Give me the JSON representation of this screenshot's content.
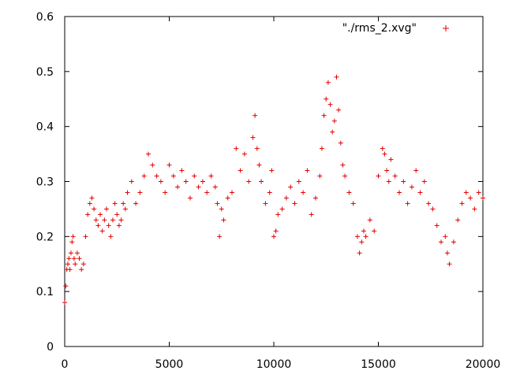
{
  "chart_data": {
    "type": "scatter",
    "title": "",
    "xlabel": "",
    "ylabel": "",
    "xlim": [
      0,
      20000
    ],
    "ylim": [
      0,
      0.6
    ],
    "x_ticks": [
      "0",
      "5000",
      "10000",
      "15000",
      "20000"
    ],
    "y_ticks": [
      "0",
      "0.1",
      "0.2",
      "0.3",
      "0.4",
      "0.5",
      "0.6"
    ],
    "grid": false,
    "legend_position": "top-right",
    "marker": "plus",
    "color": "#e00000",
    "series": [
      {
        "name": "\"./rms_2.xvg\"",
        "x": [
          0,
          50,
          100,
          150,
          200,
          250,
          300,
          350,
          400,
          450,
          500,
          600,
          700,
          800,
          900,
          1000,
          1100,
          1200,
          1300,
          1400,
          1500,
          1600,
          1700,
          1800,
          1900,
          2000,
          2100,
          2200,
          2300,
          2400,
          2500,
          2600,
          2700,
          2800,
          2900,
          3000,
          3200,
          3400,
          3600,
          3800,
          4000,
          4200,
          4400,
          4600,
          4800,
          5000,
          5200,
          5400,
          5600,
          5800,
          6000,
          6200,
          6400,
          6600,
          6800,
          7000,
          7200,
          7300,
          7400,
          7500,
          7600,
          7800,
          8000,
          8200,
          8400,
          8600,
          8800,
          9000,
          9100,
          9200,
          9300,
          9400,
          9600,
          9800,
          9900,
          10000,
          10100,
          10200,
          10400,
          10600,
          10800,
          11000,
          11200,
          11400,
          11600,
          11800,
          12000,
          12200,
          12300,
          12400,
          12500,
          12600,
          12700,
          12800,
          12900,
          13000,
          13100,
          13200,
          13300,
          13400,
          13600,
          13800,
          14000,
          14100,
          14200,
          14300,
          14400,
          14600,
          14800,
          15000,
          15200,
          15300,
          15400,
          15500,
          15600,
          15800,
          16000,
          16200,
          16400,
          16600,
          16800,
          17000,
          17200,
          17400,
          17600,
          17800,
          18000,
          18200,
          18300,
          18400,
          18600,
          18800,
          19000,
          19200,
          19400,
          19600,
          19800,
          20000
        ],
        "y": [
          0.08,
          0.11,
          0.14,
          0.15,
          0.16,
          0.14,
          0.17,
          0.19,
          0.2,
          0.16,
          0.15,
          0.17,
          0.16,
          0.14,
          0.15,
          0.2,
          0.24,
          0.26,
          0.27,
          0.25,
          0.23,
          0.22,
          0.24,
          0.21,
          0.23,
          0.25,
          0.22,
          0.2,
          0.23,
          0.26,
          0.24,
          0.22,
          0.23,
          0.26,
          0.25,
          0.28,
          0.3,
          0.26,
          0.28,
          0.31,
          0.35,
          0.33,
          0.31,
          0.3,
          0.28,
          0.33,
          0.31,
          0.29,
          0.32,
          0.3,
          0.27,
          0.31,
          0.29,
          0.3,
          0.28,
          0.31,
          0.29,
          0.26,
          0.2,
          0.25,
          0.23,
          0.27,
          0.28,
          0.36,
          0.32,
          0.35,
          0.3,
          0.38,
          0.42,
          0.36,
          0.33,
          0.3,
          0.26,
          0.28,
          0.32,
          0.2,
          0.21,
          0.24,
          0.25,
          0.27,
          0.29,
          0.26,
          0.3,
          0.28,
          0.32,
          0.24,
          0.27,
          0.31,
          0.36,
          0.42,
          0.45,
          0.48,
          0.44,
          0.39,
          0.41,
          0.49,
          0.43,
          0.37,
          0.33,
          0.31,
          0.28,
          0.26,
          0.2,
          0.17,
          0.19,
          0.21,
          0.2,
          0.23,
          0.21,
          0.31,
          0.36,
          0.35,
          0.32,
          0.3,
          0.34,
          0.31,
          0.28,
          0.3,
          0.26,
          0.29,
          0.32,
          0.28,
          0.3,
          0.26,
          0.25,
          0.22,
          0.19,
          0.2,
          0.17,
          0.15,
          0.19,
          0.23,
          0.26,
          0.28,
          0.27,
          0.25,
          0.28,
          0.27
        ]
      }
    ]
  }
}
